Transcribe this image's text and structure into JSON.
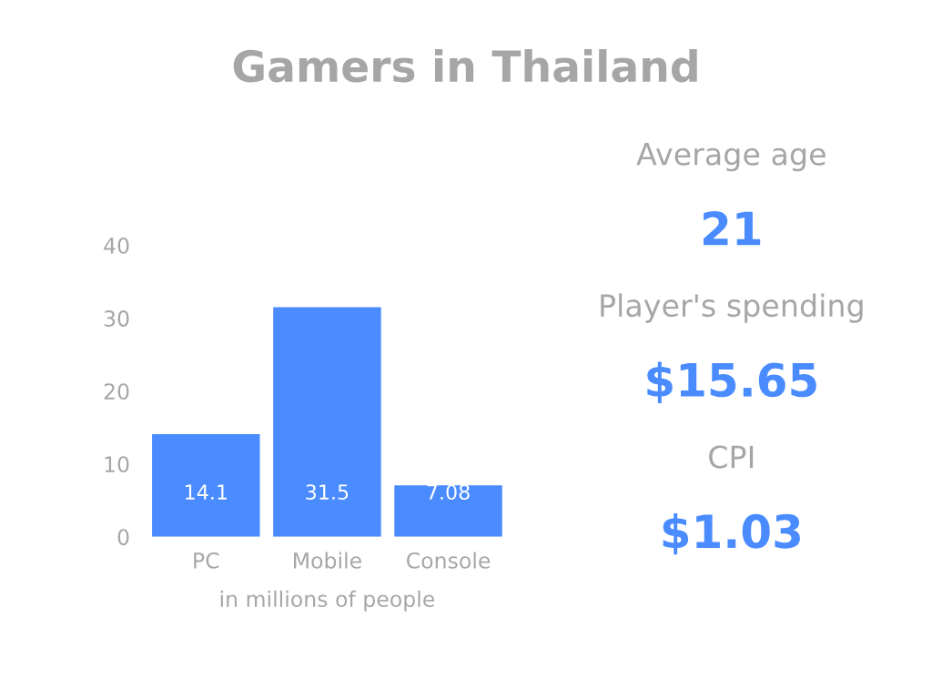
{
  "chart_data": [
    {
      "type": "bar",
      "title": "Gamers in Thailand",
      "xlabel": "in millions of people",
      "categories": [
        "PC",
        "Mobile",
        "Console"
      ],
      "values": [
        14.1,
        31.5,
        7.08
      ],
      "color": "#4a8cff",
      "ylim": [
        0,
        40
      ],
      "yticks": [
        0,
        10,
        20,
        30,
        40
      ],
      "grid": false,
      "data_labels": true
    },
    {
      "type": "other",
      "annotations": [
        "Average age",
        "21",
        "Player's spending",
        "$15.65",
        "CPI",
        "$1.03"
      ]
    }
  ]
}
